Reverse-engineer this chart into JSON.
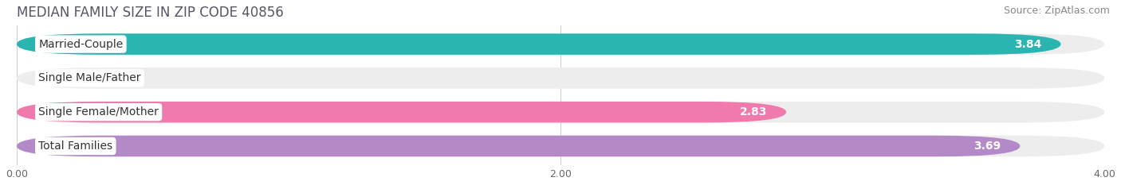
{
  "title": "MEDIAN FAMILY SIZE IN ZIP CODE 40856",
  "source": "Source: ZipAtlas.com",
  "categories": [
    "Married-Couple",
    "Single Male/Father",
    "Single Female/Mother",
    "Total Families"
  ],
  "values": [
    3.84,
    0.0,
    2.83,
    3.69
  ],
  "bar_colors": [
    "#2bb5b0",
    "#a8b8e8",
    "#f07aac",
    "#b389c8"
  ],
  "xlim_max": 4.0,
  "xticks": [
    0.0,
    2.0,
    4.0
  ],
  "xticklabels": [
    "0.00",
    "2.00",
    "4.00"
  ],
  "title_fontsize": 12,
  "source_fontsize": 9,
  "label_fontsize": 10,
  "value_fontsize": 10,
  "bar_height": 0.62,
  "bg_color": "#ffffff",
  "bar_bg_color": "#ededee",
  "label_bg_color": "#ffffff"
}
